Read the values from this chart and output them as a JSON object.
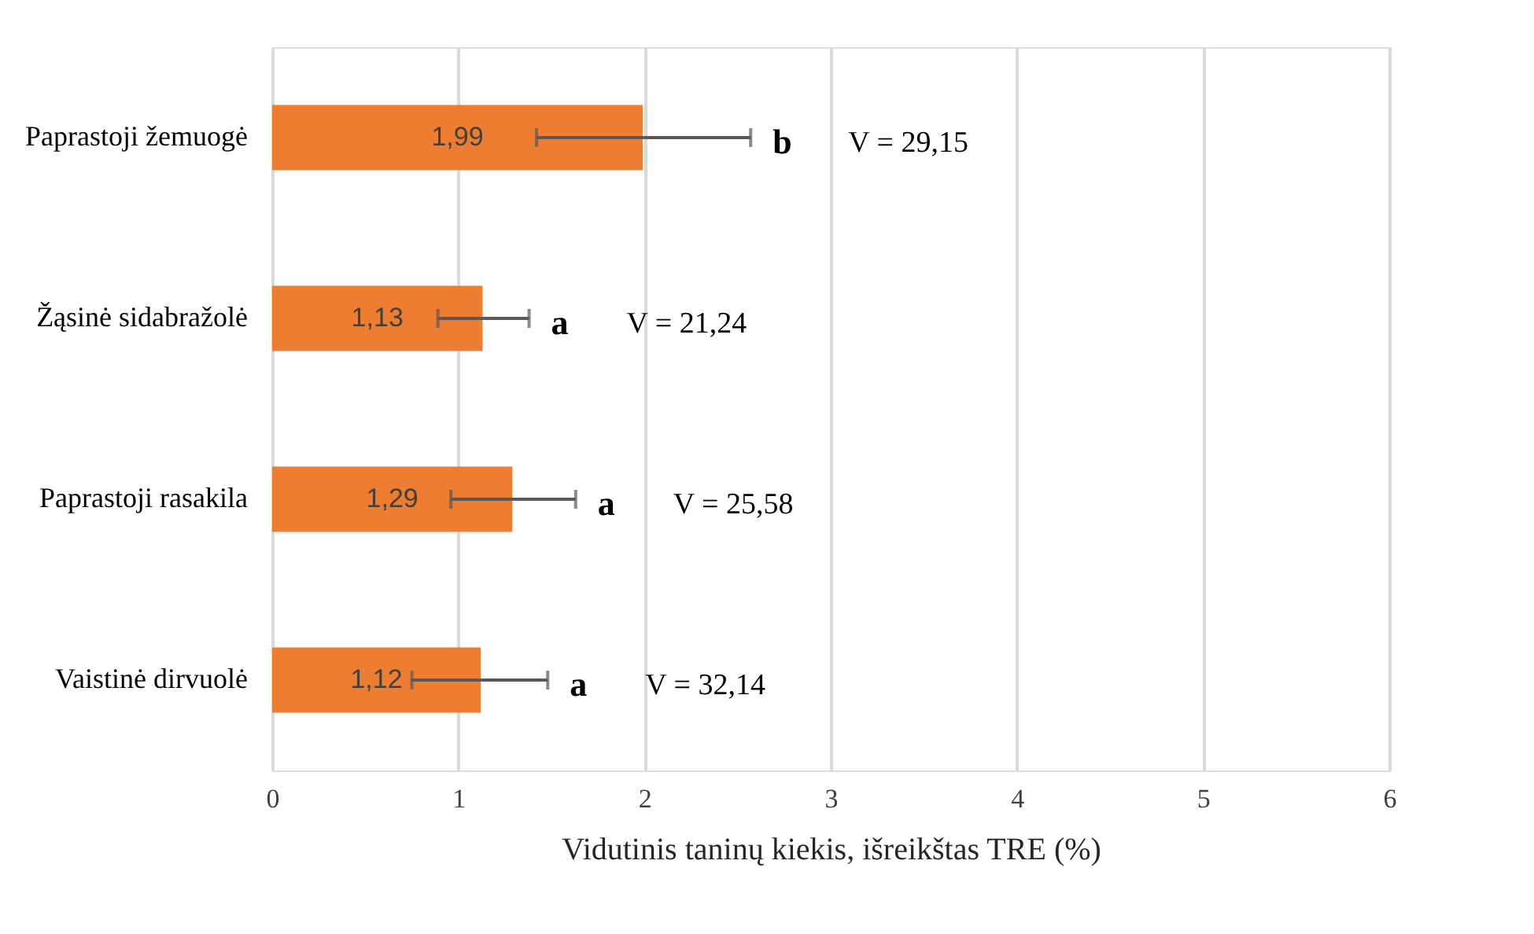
{
  "chart_data": {
    "type": "bar",
    "orientation": "horizontal",
    "categories": [
      "Paprastoji žemuogė",
      "Žąsinė sidabražolė",
      "Paprastoji rasakila",
      "Vaistinė dirvuolė"
    ],
    "values": [
      1.99,
      1.13,
      1.29,
      1.12
    ],
    "value_labels": [
      "1,99",
      "1,13",
      "1,29",
      "1,12"
    ],
    "errors": [
      [
        1.42,
        2.57
      ],
      [
        0.89,
        1.38
      ],
      [
        0.96,
        1.63
      ],
      [
        0.75,
        1.48
      ]
    ],
    "color": "#ed7d31",
    "xlabel": "Vidutinis taninų kiekis, išreikštas TRE (%)",
    "xlim": [
      0,
      6
    ],
    "xticks": [
      0,
      1,
      2,
      3,
      4,
      5,
      6
    ],
    "grid": "x",
    "annotations": [
      "b",
      "V = 29,15",
      "a",
      "V = 21,24",
      "a",
      "V = 25,58",
      "a",
      "V = 32,14"
    ]
  }
}
